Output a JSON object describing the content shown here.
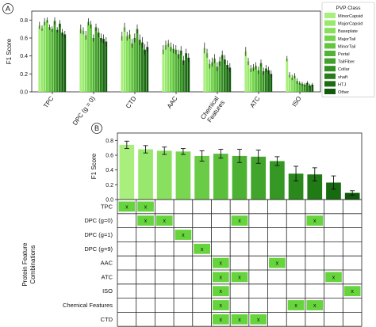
{
  "chart_data": [
    {
      "type": "bar",
      "panel_label": "A",
      "ylabel": "F1 Score",
      "yticks": [
        "0.0",
        "0.2",
        "0.4",
        "0.6",
        "0.8"
      ],
      "ylim": [
        0,
        0.9
      ],
      "categories": [
        "TPC",
        "DPC (g = 0)",
        "CTD",
        "AAC",
        "Chemical Features",
        "ATC",
        "ISO"
      ],
      "legend": {
        "title": "PVP Class",
        "placement": "top-right",
        "entries": [
          "MinorCapsid",
          "MajorCapsid",
          "Baseplate",
          "MajorTail",
          "MinorTail",
          "Portal",
          "TailFiber",
          "Collar",
          "shaft",
          "HTJ",
          "Other"
        ]
      },
      "colors": [
        "#a8ef7e",
        "#97e96c",
        "#86e05c",
        "#74d34d",
        "#63c440",
        "#52b334",
        "#42a12a",
        "#348f21",
        "#287c19",
        "#1c6a12",
        "#125a0c"
      ],
      "series": [
        {
          "name": "MinorCapsid",
          "values": [
            0.74,
            0.7,
            0.62,
            0.47,
            0.49,
            0.45,
            0.37
          ],
          "errors": [
            0.04,
            0.05,
            0.05,
            0.05,
            0.06,
            0.05,
            0.03
          ]
        },
        {
          "name": "MajorCapsid",
          "values": [
            0.71,
            0.68,
            0.72,
            0.52,
            0.43,
            0.34,
            0.19
          ],
          "errors": [
            0.03,
            0.04,
            0.05,
            0.05,
            0.05,
            0.04,
            0.03
          ]
        },
        {
          "name": "Baseplate",
          "values": [
            0.78,
            0.63,
            0.62,
            0.54,
            0.31,
            0.26,
            0.16
          ],
          "errors": [
            0.04,
            0.05,
            0.05,
            0.04,
            0.05,
            0.04,
            0.03
          ]
        },
        {
          "name": "MajorTail",
          "values": [
            0.8,
            0.78,
            0.64,
            0.5,
            0.33,
            0.27,
            0.18
          ],
          "errors": [
            0.03,
            0.04,
            0.05,
            0.05,
            0.05,
            0.04,
            0.03
          ]
        },
        {
          "name": "MinorTail",
          "values": [
            0.72,
            0.75,
            0.54,
            0.48,
            0.37,
            0.29,
            0.12
          ],
          "errors": [
            0.03,
            0.04,
            0.05,
            0.05,
            0.05,
            0.04,
            0.03
          ]
        },
        {
          "name": "Portal",
          "values": [
            0.7,
            0.6,
            0.6,
            0.47,
            0.28,
            0.24,
            0.1
          ],
          "errors": [
            0.03,
            0.04,
            0.05,
            0.05,
            0.05,
            0.04,
            0.02
          ]
        },
        {
          "name": "TailFiber",
          "values": [
            0.79,
            0.72,
            0.7,
            0.42,
            0.34,
            0.32,
            0.09
          ],
          "errors": [
            0.04,
            0.04,
            0.05,
            0.05,
            0.05,
            0.04,
            0.02
          ]
        },
        {
          "name": "Collar",
          "values": [
            0.69,
            0.66,
            0.58,
            0.46,
            0.41,
            0.23,
            0.08
          ],
          "errors": [
            0.03,
            0.05,
            0.06,
            0.05,
            0.05,
            0.04,
            0.02
          ]
        },
        {
          "name": "shaft",
          "values": [
            0.76,
            0.6,
            0.55,
            0.35,
            0.36,
            0.26,
            0.1
          ],
          "errors": [
            0.04,
            0.05,
            0.06,
            0.05,
            0.05,
            0.04,
            0.02
          ]
        },
        {
          "name": "HTJ",
          "values": [
            0.66,
            0.59,
            0.47,
            0.43,
            0.3,
            0.24,
            0.07
          ],
          "errors": [
            0.04,
            0.05,
            0.06,
            0.05,
            0.05,
            0.04,
            0.02
          ]
        },
        {
          "name": "Other",
          "values": [
            0.64,
            0.56,
            0.5,
            0.38,
            0.27,
            0.2,
            0.08
          ],
          "errors": [
            0.04,
            0.05,
            0.06,
            0.05,
            0.05,
            0.04,
            0.02
          ]
        }
      ]
    },
    {
      "type": "bar",
      "panel_label": "B",
      "ylabel": "F1 Score",
      "yticks": [
        "0.0",
        "0.2",
        "0.4",
        "0.6",
        "0.8"
      ],
      "ylim": [
        0,
        0.9
      ],
      "values": [
        0.74,
        0.68,
        0.66,
        0.65,
        0.59,
        0.62,
        0.59,
        0.58,
        0.52,
        0.35,
        0.34,
        0.23,
        0.09
      ],
      "errors": [
        0.05,
        0.05,
        0.05,
        0.04,
        0.07,
        0.06,
        0.09,
        0.09,
        0.06,
        0.1,
        0.09,
        0.09,
        0.03
      ],
      "colors": [
        "#a8ef7e",
        "#98e86d",
        "#88e05e",
        "#78d651",
        "#69cb46",
        "#5bbf3c",
        "#4db233",
        "#41a52b",
        "#359724",
        "#2a881c",
        "#207a15",
        "#166a10",
        "#0e5a0a"
      ]
    },
    {
      "type": "table",
      "ylabel": "Protein Feature Combinations",
      "rows": [
        "TPC",
        "DPC (g=0)",
        "DPC (g=1)",
        "DPC (g=9)",
        "AAC",
        "ATC",
        "ISO",
        "Chemical Features",
        "CTD"
      ],
      "columns": 13,
      "marker": "x",
      "marked": [
        [
          0,
          1
        ],
        [
          1,
          2,
          6,
          10
        ],
        [
          3
        ],
        [
          4
        ],
        [
          5,
          8
        ],
        [
          5,
          6,
          11
        ],
        [
          5,
          12
        ],
        [
          5,
          9,
          10
        ],
        [
          5,
          6,
          7
        ]
      ]
    }
  ]
}
